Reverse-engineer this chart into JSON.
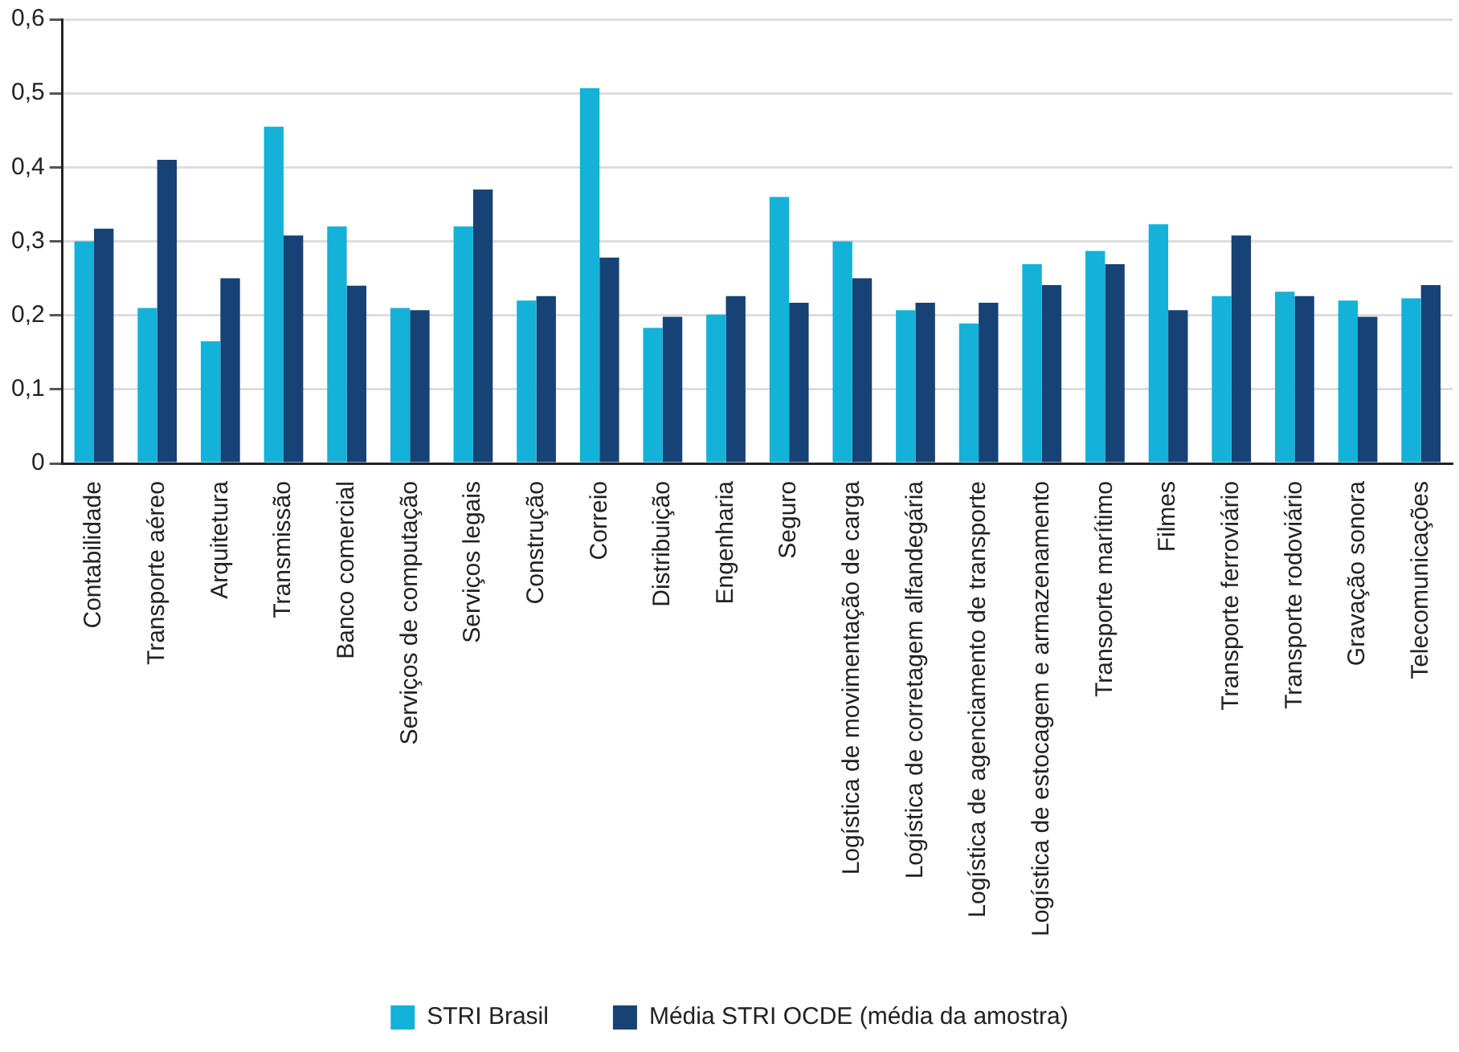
{
  "chart_data": {
    "type": "bar",
    "categories": [
      "Contabilidade",
      "Transporte aéreo",
      "Arquitetura",
      "Transmissão",
      "Banco comercial",
      "Serviços de computação",
      "Serviços legais",
      "Construção",
      "Correio",
      "Distribuição",
      "Engenharia",
      "Seguro",
      "Logística de movimentação de carga",
      "Logística de corretagem alfandegária",
      "Logística de agenciamento de transporte",
      "Logística de estocagem e armazenamento",
      "Transporte marítimo",
      "Filmes",
      "Transporte ferroviário",
      "Transporte rodoviário",
      "Gravação sonora",
      "Telecomunicações"
    ],
    "series": [
      {
        "name": "STRI Brasil",
        "color": "#14b1d9",
        "values": [
          0.3,
          0.21,
          0.165,
          0.455,
          0.32,
          0.21,
          0.32,
          0.22,
          0.507,
          0.183,
          0.201,
          0.36,
          0.3,
          0.207,
          0.189,
          0.269,
          0.287,
          0.323,
          0.226,
          0.232,
          0.22,
          0.223
        ]
      },
      {
        "name": "Média STRI OCDE (média da amostra)",
        "color": "#174276",
        "values": [
          0.317,
          0.41,
          0.25,
          0.308,
          0.24,
          0.207,
          0.37,
          0.226,
          0.278,
          0.198,
          0.226,
          0.217,
          0.25,
          0.217,
          0.217,
          0.241,
          0.269,
          0.207,
          0.308,
          0.226,
          0.198,
          0.241
        ]
      }
    ],
    "ylim": [
      0,
      0.6
    ],
    "yticks": [
      {
        "value": 0,
        "label": "0"
      },
      {
        "value": 0.1,
        "label": "0,1"
      },
      {
        "value": 0.2,
        "label": "0,2"
      },
      {
        "value": 0.3,
        "label": "0,3"
      },
      {
        "value": 0.4,
        "label": "0,4"
      },
      {
        "value": 0.5,
        "label": "0,5"
      },
      {
        "value": 0.6,
        "label": "0,6"
      }
    ],
    "grid": "y",
    "legend": "bottom"
  }
}
